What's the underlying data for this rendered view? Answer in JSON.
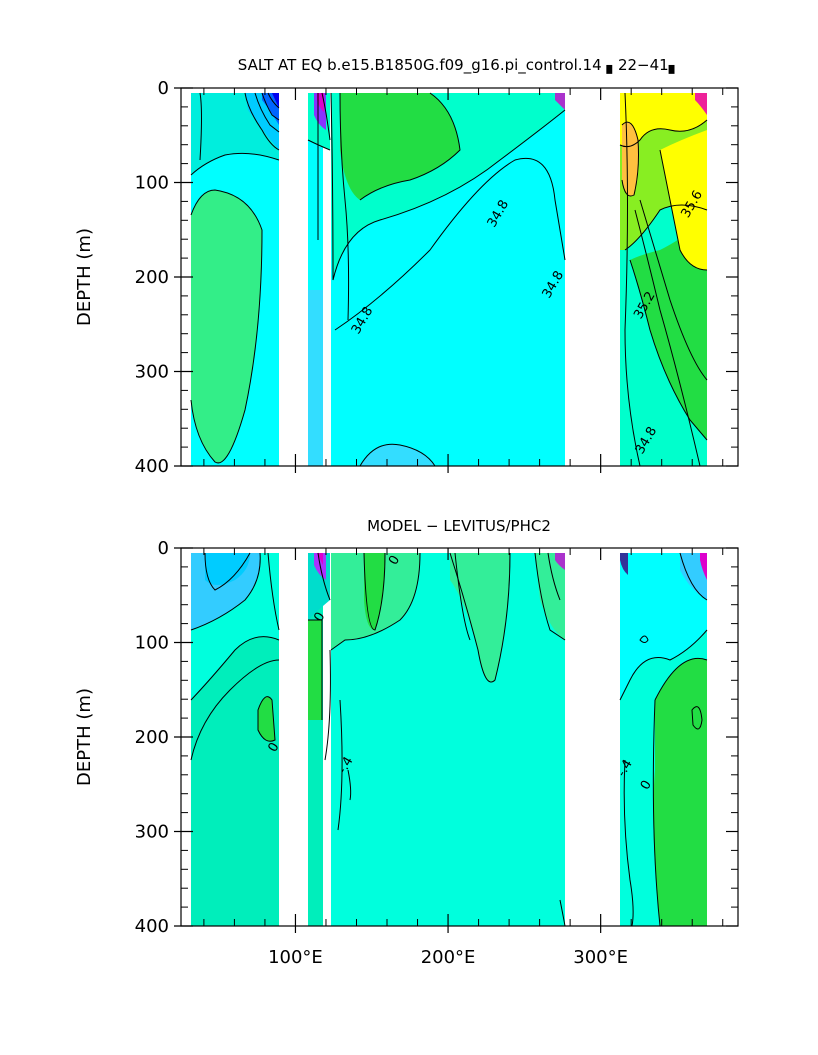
{
  "chart_data": [
    {
      "type": "heatmap",
      "title": "SALT AT EQ  b.e15.B1850G.f09_g16.pi_control.14  ▖22−41▖",
      "xlabel": "",
      "ylabel": "DEPTH (m)",
      "xlim": [
        25,
        390
      ],
      "ylim": [
        400,
        0
      ],
      "x_ticks": [
        100,
        200,
        300
      ],
      "x_tick_labels": [
        "",
        "",
        ""
      ],
      "y_ticks": [
        0,
        100,
        200,
        300,
        400
      ],
      "y_tick_labels": [
        "0",
        "100",
        "200",
        "300",
        "400"
      ],
      "land_gaps_lon": [
        [
          97,
          117
        ],
        [
          130,
          130.5
        ],
        [
          277,
          313
        ],
        [
          367,
          390
        ]
      ],
      "contour_labels": [
        {
          "text": "34.8",
          "lon": 235,
          "depth": 135
        },
        {
          "text": "34.8",
          "lon": 271,
          "depth": 210
        },
        {
          "text": "34.8",
          "lon": 146,
          "depth": 248
        },
        {
          "text": "35.6",
          "lon": 362,
          "depth": 125
        },
        {
          "text": "35.2",
          "lon": 331,
          "depth": 232
        },
        {
          "text": "34.8",
          "lon": 332,
          "depth": 375
        }
      ],
      "colors": {
        "cyan": "#00ffff",
        "aqua_green": "#00ffcc",
        "light_green": "#33ee99",
        "green": "#22dd44",
        "yellow": "#ffff00",
        "orange": "#ffc040",
        "blue": "#0066ff"
      }
    },
    {
      "type": "heatmap",
      "title": "MODEL − LEVITUS/PHC2",
      "xlabel": "",
      "ylabel": "DEPTH (m)",
      "xlim": [
        25,
        390
      ],
      "ylim": [
        400,
        0
      ],
      "x_ticks": [
        100,
        200,
        300
      ],
      "x_tick_labels": [
        "100°E",
        "200°E",
        "300°E"
      ],
      "y_ticks": [
        0,
        100,
        200,
        300,
        400
      ],
      "y_tick_labels": [
        "0",
        "100",
        "200",
        "300",
        "400"
      ],
      "land_gaps_lon": [
        [
          97,
          117
        ],
        [
          130,
          130.5
        ],
        [
          277,
          313
        ],
        [
          367,
          390
        ]
      ],
      "contour_labels": [
        {
          "text": "0",
          "lon": 118,
          "depth": 75
        },
        {
          "text": "0",
          "lon": 167,
          "depth": 15
        },
        {
          "text": "0",
          "lon": 88,
          "depth": 213
        },
        {
          "text": "-.4",
          "lon": 135,
          "depth": 232
        },
        {
          "text": "-.4",
          "lon": 318,
          "depth": 235
        },
        {
          "text": "0",
          "lon": 332,
          "depth": 253
        }
      ],
      "colors": {
        "aqua_green": "#00ffcc",
        "sea_green": "#22eeaa",
        "green": "#22dd44",
        "cyan": "#00ffff",
        "sky": "#33ccff"
      }
    }
  ]
}
